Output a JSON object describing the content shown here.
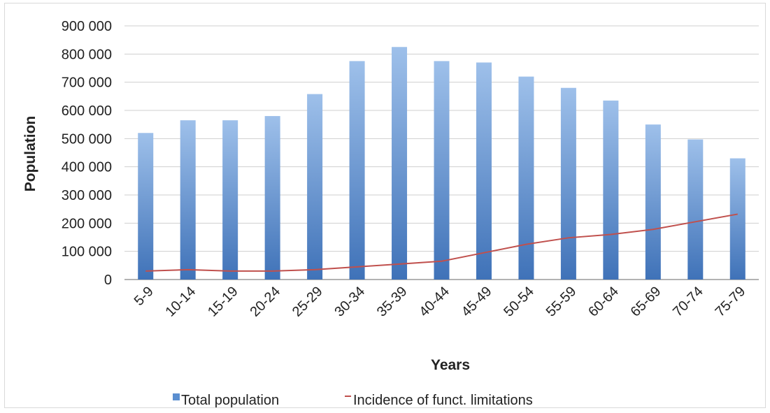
{
  "chart_data": {
    "type": "bar",
    "title": "",
    "xlabel": "Years",
    "ylabel": "Population",
    "ylim": [
      0,
      900000
    ],
    "yticks": [
      0,
      100000,
      200000,
      300000,
      400000,
      500000,
      600000,
      700000,
      800000,
      900000
    ],
    "ytick_labels": [
      "0",
      "100 000",
      "200 000",
      "300 000",
      "400 000",
      "500 000",
      "600 000",
      "700 000",
      "800 000",
      "900 000"
    ],
    "categories": [
      "5-9",
      "10-14",
      "15-19",
      "20-24",
      "25-29",
      "30-34",
      "35-39",
      "40-44",
      "45-49",
      "50-54",
      "55-59",
      "60-64",
      "65-69",
      "70-74",
      "75-79"
    ],
    "series": [
      {
        "name": "Total population",
        "kind": "bar",
        "color": "#5b8fd0",
        "values": [
          520000,
          565000,
          565000,
          580000,
          658000,
          775000,
          825000,
          775000,
          770000,
          720000,
          680000,
          635000,
          550000,
          497000,
          430000
        ]
      },
      {
        "name": "Incidence of funct. limitations",
        "kind": "line",
        "color": "#c0504d",
        "values": [
          30000,
          35000,
          30000,
          30000,
          35000,
          45000,
          55000,
          65000,
          95000,
          125000,
          148000,
          160000,
          178000,
          205000,
          232000
        ]
      }
    ],
    "grid": true,
    "legend_position": "bottom"
  }
}
